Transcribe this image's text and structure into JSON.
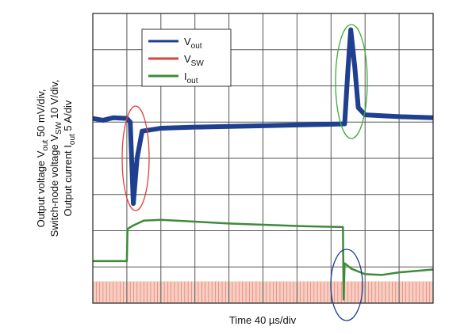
{
  "chart_data": {
    "type": "line",
    "ylabel_lines": [
      [
        "Output voltage V",
        "out",
        "  50 mV/div,"
      ],
      [
        "Switch-node voltage V",
        "SW",
        "  10 V/div,"
      ],
      [
        "Output current I",
        "out",
        "  5 A/div"
      ]
    ],
    "xlabel": "Time  40 µs/div",
    "xlim": [
      0,
      10
    ],
    "ylim": [
      0,
      8
    ],
    "xticks": [
      0,
      1,
      2,
      3,
      4,
      5,
      6,
      7,
      8,
      9,
      10
    ],
    "yticks": [
      0,
      1,
      2,
      3,
      4,
      5,
      6,
      7,
      8
    ],
    "grid": true,
    "series": [
      {
        "name": "V",
        "name_sub": "out",
        "color": "#1f3f8f",
        "x": [
          0,
          0.3,
          0.6,
          1.0,
          1.1,
          1.19,
          1.3,
          1.45,
          2,
          3,
          4,
          5,
          6,
          7,
          7.4,
          7.5,
          7.58,
          7.7,
          7.8,
          8,
          9,
          10
        ],
        "values": [
          5.1,
          5.05,
          5.12,
          5.1,
          5.0,
          2.75,
          4.0,
          4.75,
          4.83,
          4.86,
          4.88,
          4.9,
          4.92,
          4.94,
          4.95,
          6.5,
          7.55,
          6.5,
          5.4,
          5.2,
          5.15,
          5.12
        ]
      },
      {
        "name": "V",
        "name_sub": "SW",
        "color": "#e0403a",
        "low": 0,
        "high": 0.6,
        "period": 0.1
      },
      {
        "name": "I",
        "name_sub": "out",
        "color": "#3f8a3a",
        "x": [
          0,
          1.0,
          1.02,
          1.2,
          1.5,
          2,
          4,
          6,
          7.35,
          7.37,
          7.4,
          7.6,
          8,
          8.5,
          9,
          10
        ],
        "values": [
          1.16,
          1.16,
          2.05,
          2.15,
          2.28,
          2.3,
          2.2,
          2.13,
          2.1,
          0.1,
          1.1,
          0.95,
          0.8,
          0.78,
          0.85,
          0.93
        ]
      }
    ]
  }
}
